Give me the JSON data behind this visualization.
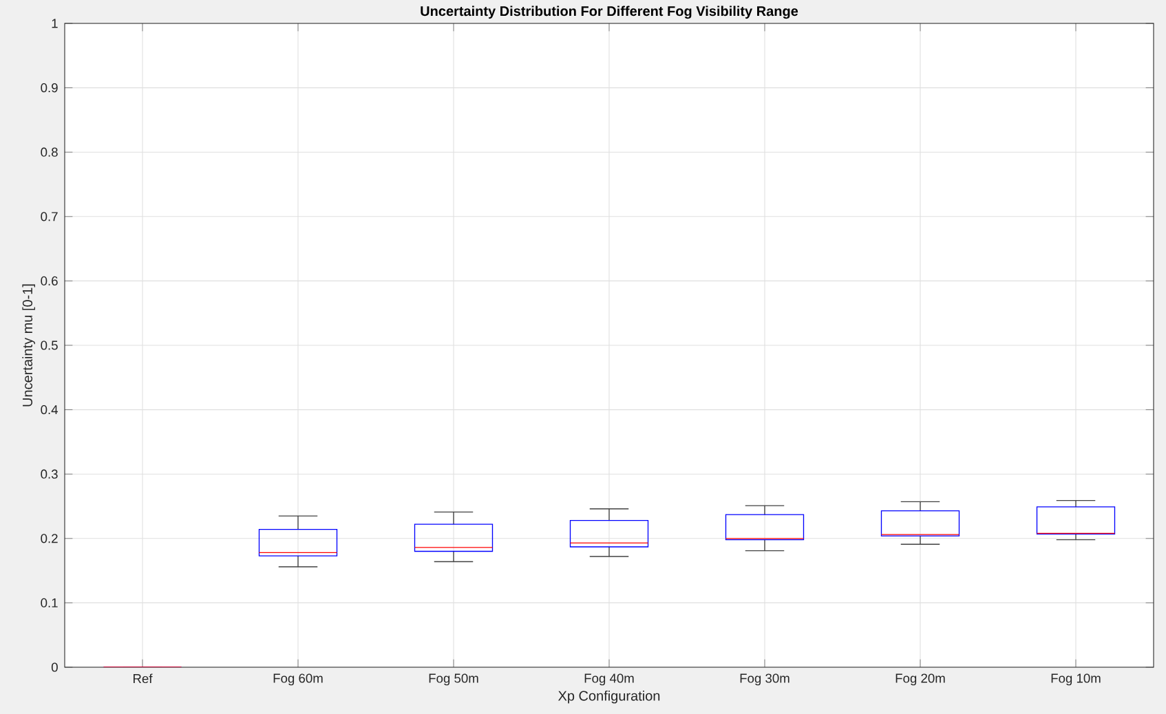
{
  "chart_data": {
    "type": "box",
    "title": "Uncertainty Distribution For Different Fog Visibility Range",
    "xlabel": "Xp Configuration",
    "ylabel": "Uncertainty mu [0-1]",
    "categories": [
      "Ref",
      "Fog 60m",
      "Fog 50m",
      "Fog 40m",
      "Fog 30m",
      "Fog 20m",
      "Fog 10m"
    ],
    "series": [
      {
        "color": "#0000ff",
        "boxes": [
          {
            "low": 0,
            "q1": 0,
            "median": 0,
            "q3": 0,
            "high": 0
          },
          {
            "low": 0.156,
            "q1": 0.173,
            "median": 0.178,
            "q3": 0.214,
            "high": 0.235
          },
          {
            "low": 0.164,
            "q1": 0.18,
            "median": 0.186,
            "q3": 0.222,
            "high": 0.241
          },
          {
            "low": 0.172,
            "q1": 0.187,
            "median": 0.193,
            "q3": 0.228,
            "high": 0.246
          },
          {
            "low": 0.181,
            "q1": 0.198,
            "median": 0.2,
            "q3": 0.237,
            "high": 0.251
          },
          {
            "low": 0.191,
            "q1": 0.204,
            "median": 0.206,
            "q3": 0.243,
            "high": 0.257
          },
          {
            "low": 0.198,
            "q1": 0.207,
            "median": 0.208,
            "q3": 0.249,
            "high": 0.259
          }
        ]
      }
    ],
    "ylim": [
      0,
      1
    ],
    "yticks": [
      0,
      0.1,
      0.2,
      0.3,
      0.4,
      0.5,
      0.6,
      0.7,
      0.8,
      0.9,
      1
    ],
    "grid": true
  }
}
